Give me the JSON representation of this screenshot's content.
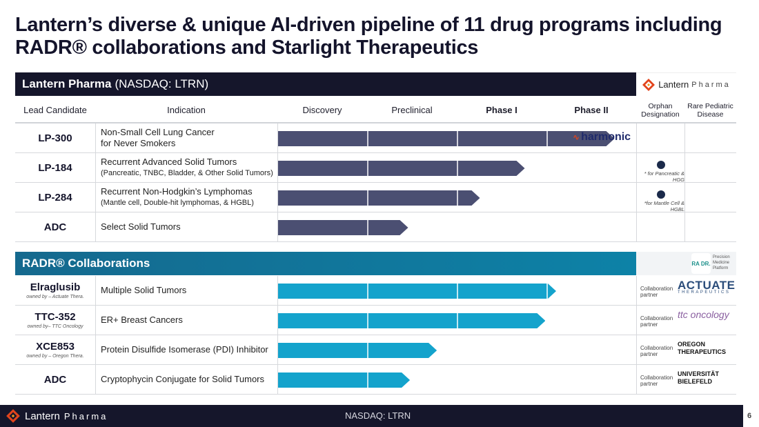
{
  "title": "Lantern’s diverse & unique AI-driven pipeline of 11 drug programs including RADR® collaborations and Starlight Therapeutics",
  "lantern_header": {
    "name": "Lantern Pharma",
    "ticker": "(NASDAQ: LTRN)"
  },
  "lantern_logo": {
    "word1": "Lantern",
    "word2": "Pharma"
  },
  "columns": {
    "lead": "Lead Candidate",
    "indication": "Indication",
    "discovery": "Discovery",
    "preclinical": "Preclinical",
    "phase1": "Phase I",
    "phase2": "Phase II",
    "orphan": "Orphan Designation",
    "pediatric": "Rare Pediatric Disease"
  },
  "lantern_rows": [
    {
      "candidate": "LP-300",
      "indication": "Non-Small Cell Lung Cancer",
      "indication2": "for Never Smokers",
      "progress": 3.75,
      "partner": "harmonic"
    },
    {
      "candidate": "LP-184",
      "indication": "Recurrent Advanced Solid Tumors",
      "indication2": "(Pancreatic, TNBC, Bladder, & Other Solid Tumors)",
      "progress": 2.75,
      "orphan_note": "* for Pancreatic & HGG"
    },
    {
      "candidate": "LP-284",
      "indication": "Recurrent Non-Hodgkin’s Lymphomas",
      "indication2": "(Mantle cell, Double-hit lymphomas, & HGBL)",
      "progress": 2.25,
      "orphan_note": "*for Mantle Cell & HGBL"
    },
    {
      "candidate": "ADC",
      "indication": "Select Solid Tumors",
      "indication2": "",
      "progress": 1.45
    }
  ],
  "radr_header": {
    "name": "RADR® Collaborations"
  },
  "radr_logo": {
    "mark": "RA DR.",
    "text": "Precision Medicine Platform"
  },
  "radr_rows": [
    {
      "candidate": "Elraglusib",
      "owner": "owned by – Actuate Thera.",
      "indication": "Multiple Solid Tumors",
      "progress": 3.1,
      "collab": "Collaboration partner",
      "partner": "ACTUATE",
      "partner_sub": "THERAPEUTICS"
    },
    {
      "candidate": "TTC-352",
      "owner": "owned by– TTC Oncology",
      "indication": "ER+ Breast Cancers",
      "progress": 2.98,
      "collab": "Collaboration partner",
      "partner": "ttc oncology"
    },
    {
      "candidate": "XCE853",
      "owner": "owned by – Oregon Thera.",
      "indication": "Protein Disulfide Isomerase (PDI) Inhibitor",
      "progress": 1.77,
      "collab": "Collaboration partner",
      "partner": "OREGON",
      "partner_sub": "THERAPEUTICS"
    },
    {
      "candidate": "ADC",
      "owner": "",
      "indication": "Cryptophycin Conjugate for Solid Tumors",
      "progress": 1.47,
      "collab": "Collaboration partner",
      "partner": "UNIVERSITÄT",
      "partner_sub": "BIELEFELD"
    }
  ],
  "footer": {
    "ticker": "NASDAQ: LTRN",
    "page": "6"
  },
  "colors": {
    "lantern_bar": "#4b4f72",
    "radr_bar": "#14a3cc",
    "header_dark": "#15162b"
  }
}
